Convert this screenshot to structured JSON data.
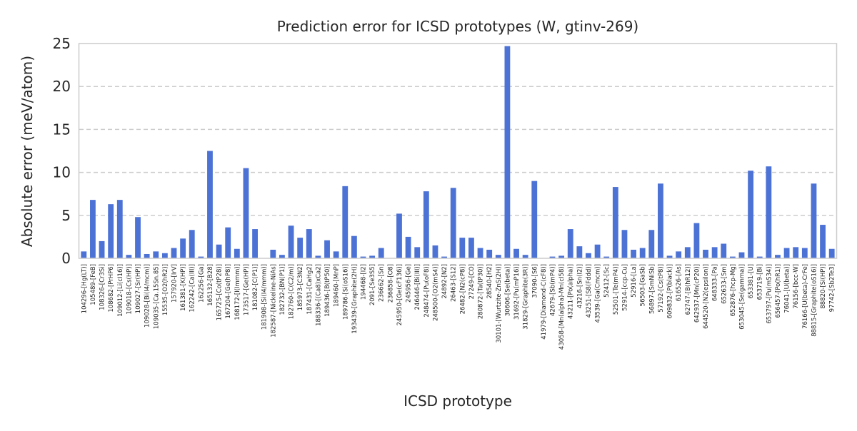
{
  "chart_data": {
    "type": "bar",
    "title": "Prediction error for ICSD prototypes (W, gtinv-269)",
    "xlabel": "ICSD prototype",
    "ylabel": "Absolute error (meV/atom)",
    "ylim": [
      0,
      25
    ],
    "yticks": [
      0,
      5,
      10,
      15,
      20,
      25
    ],
    "grid": "horizontal dashed",
    "bar_color": "#4c72d6",
    "categories": [
      "104296-[Hg(LT)]",
      "105489-[FeB]",
      "108326-[Cr3Si]",
      "108682-[PrHP6]",
      "109012-[Li(cI16)]",
      "109018-[Cs(HP)]",
      "109027-[Sr(HP)]",
      "109028-[Bi(I4/mcm)]",
      "109035-[Ca.15Sn.85]",
      "15535-[O2(hR2)]",
      "157920-[IrV]",
      "161381-[K(HP)]",
      "162242-[Ca(III)]",
      "162256-[Ga]",
      "165132-[B28]",
      "165725-[Co(tP28)]",
      "167204-[Ge(hP8)]",
      "168172-[I(Immm)]",
      "173517-[Ge(HP)]",
      "181082-[C(P1)]",
      "181908-[Si(I4/mmm)]",
      "182587-[Nickeline-NiAs]",
      "182732-[BN(P1)]",
      "182760-[C(C2/m)]",
      "185973-[C3N2]",
      "187431-[CaHg2]",
      "188336-[(Ca8)xCa2]",
      "189436-[B(tP50)]",
      "189460-[MnP]",
      "189786-[Si(oS16)]",
      "193439-[Graphite(2H)]",
      "194468-[I2]",
      "2091-[Se3S5]",
      "236662-[Sn]",
      "236858-[O8]",
      "245950-[Ge(cF136)]",
      "245956-[Ge]",
      "246446-[Bi(III)]",
      "248474-[Pu(oF8)]",
      "248500-[O2(mS4)]",
      "24892-[N2]",
      "26463-[S12]",
      "26482-[N2(cP8)]",
      "27249-[CO]",
      "280872-[Ta(tP30)]",
      "28540-[H2]",
      "30101-[Wurtzite-ZnS(2H)]",
      "30606-[Se(beta)]",
      "31692-[Pu(mP16)]",
      "31829-[Graphite(3R)]",
      "37090-[S6]",
      "41979-[Diamond-C(cF8)]",
      "42679-[Sb(mP4)]",
      "43058-[Mn(alpha)-Mn(cI58)]",
      "43211-[Po(alpha)]",
      "43216-[Sn(I2)]",
      "43251-[S8(Fddd)]",
      "43539-[Ga(Cmcm)]",
      "52412-[Sc]",
      "52501-[Te(mP4)]",
      "52914-[ccp-Cu]",
      "52916-[La]",
      "56503-[GaSb]",
      "56897-[SmNiSb]",
      "57192-[Cs(tP8)]",
      "609832-[P(black)]",
      "616526-[As]",
      "62747-[B(hR12)]",
      "642937-[Mn(cP20)]",
      "644520-[N2(epsilon)]",
      "648333-[Pa]",
      "652633-[Sm]",
      "652876-[hcp-Mg]",
      "653045-[Se(gamma)]",
      "653381-[U]",
      "653719-[Bi]",
      "653797-[Pu(mS34)]",
      "656457-[Po(hR1)]",
      "76041-[U(beta)]",
      "76156-[bcc-W]",
      "76166-[U(beta)-CrFe]",
      "88815-[Graphite(oS16)]",
      "88820-[Si(HP)]",
      "97742-[Sb2Te3]"
    ],
    "values": [
      0.8,
      6.8,
      2.0,
      6.3,
      6.8,
      0.4,
      4.8,
      0.5,
      0.8,
      0.6,
      1.2,
      2.3,
      3.3,
      0.2,
      12.5,
      1.6,
      3.6,
      1.1,
      10.5,
      3.4,
      0.0,
      1.0,
      0.4,
      3.8,
      2.4,
      3.4,
      0.3,
      2.1,
      0.8,
      8.4,
      2.6,
      0.2,
      0.3,
      1.2,
      0.0,
      5.2,
      2.5,
      1.3,
      7.8,
      1.5,
      0.2,
      8.2,
      2.4,
      2.4,
      1.2,
      1.0,
      0.4,
      24.7,
      1.1,
      0.4,
      9.0,
      0.0,
      0.2,
      0.3,
      3.4,
      1.4,
      0.6,
      1.6,
      0.2,
      8.3,
      3.3,
      1.0,
      1.2,
      3.3,
      8.7,
      0.3,
      0.8,
      1.3,
      4.1,
      1.0,
      1.3,
      1.7,
      0.2,
      0.7,
      10.2,
      0.2,
      10.7,
      0.4,
      1.2,
      1.3,
      1.2,
      8.7,
      3.9,
      1.1
    ]
  }
}
